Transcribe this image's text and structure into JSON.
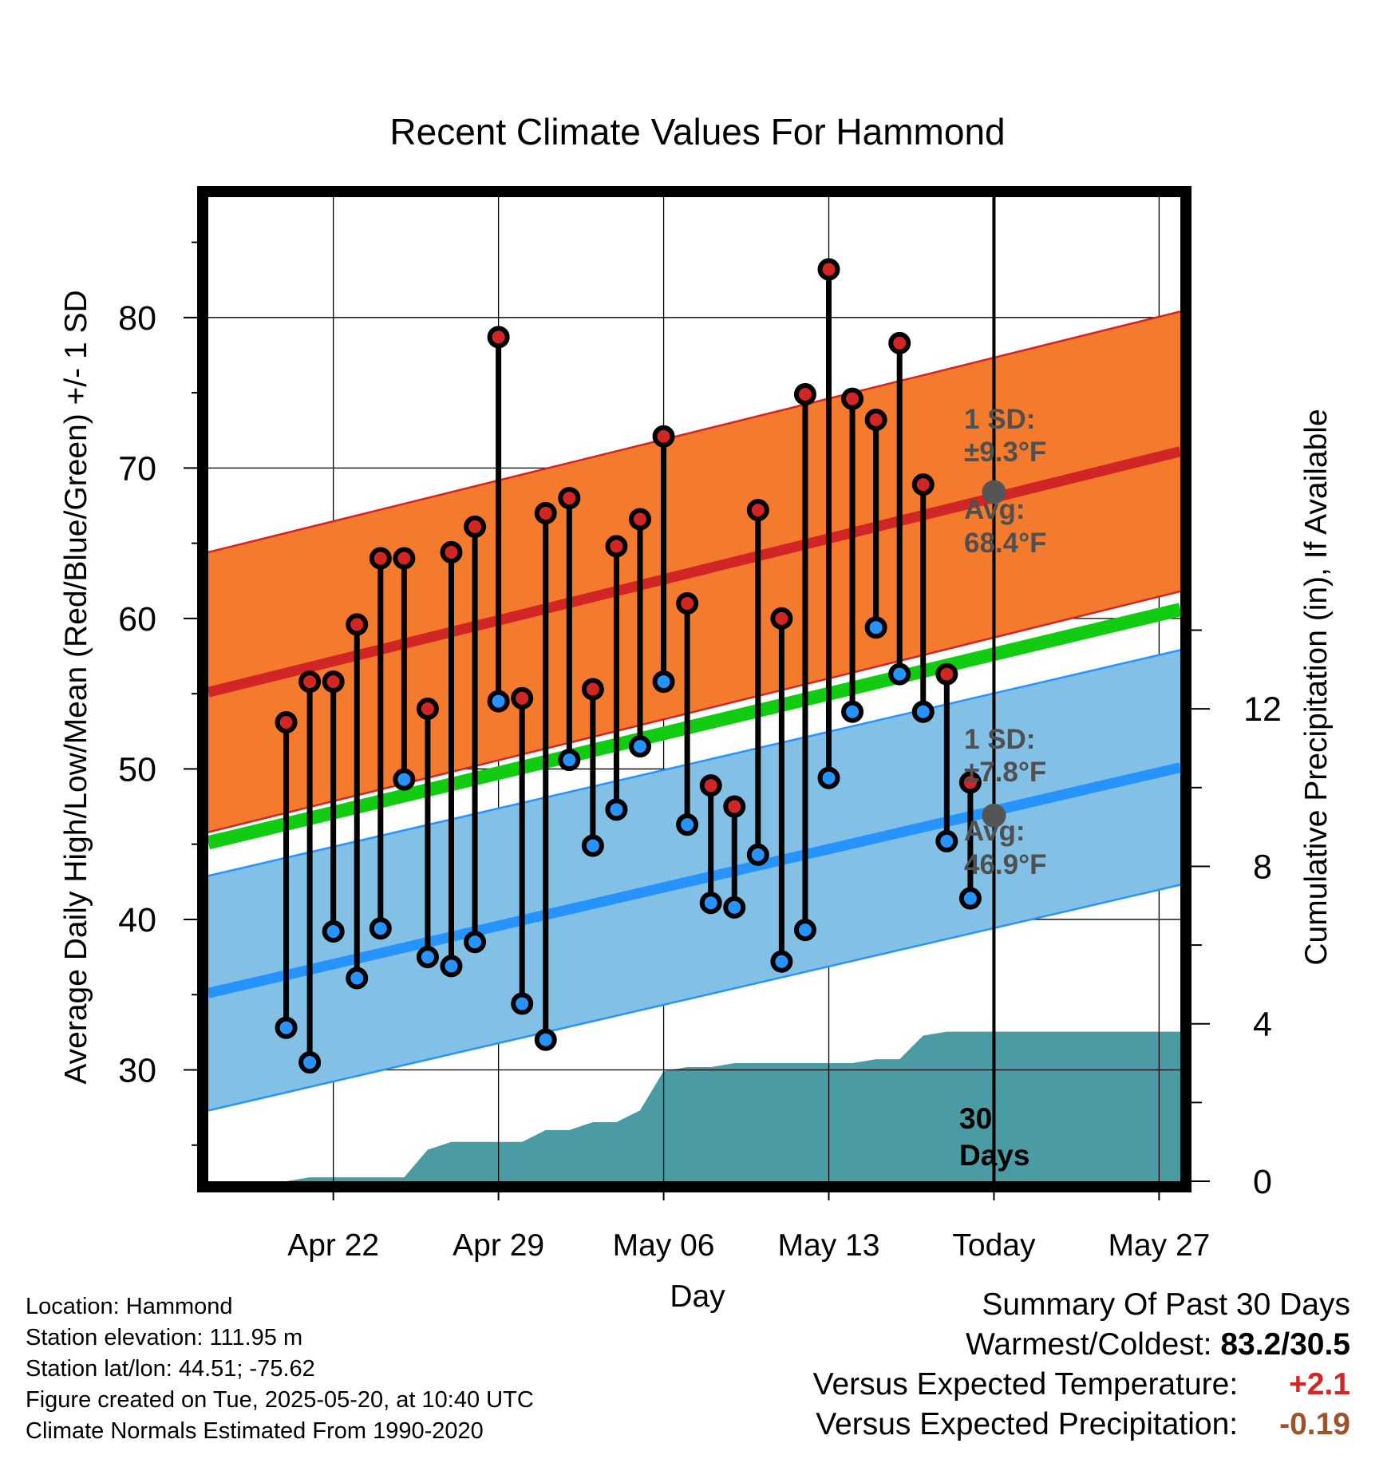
{
  "title": "Recent Climate Values For Hammond",
  "chart_data": {
    "type": "line",
    "title": "Recent Climate Values For Hammond",
    "xlabel": "Day",
    "ylabel": "Average Daily High/Low/Mean (Red/Blue/Green) +/- 1 SD",
    "y2label": "Cumulative Precipitation (in), If Available",
    "x_ticks": [
      "Apr 22",
      "Apr 29",
      "May 06",
      "May 13",
      "Today",
      "May 27"
    ],
    "y_ticks": [
      30,
      40,
      50,
      60,
      70,
      80
    ],
    "y2_ticks": [
      0,
      4,
      8,
      12
    ],
    "ylim": [
      22.6,
      88.0
    ],
    "y2lim": [
      0,
      25
    ],
    "x_range_days": [
      -33.3,
      7.9
    ],
    "x_units": "days relative to Today (May 20)",
    "grid": true,
    "today_marker": {
      "label": "30 Days"
    },
    "normals": {
      "high": {
        "start": 55.1,
        "end": 71.1,
        "sd": 9.3,
        "today_avg": 68.4
      },
      "low": {
        "start": 35.1,
        "end": 50.1,
        "sd": 7.8,
        "today_avg": 46.9
      },
      "mean": {
        "start": 45.1,
        "end": 60.6
      }
    },
    "annotations": {
      "high_sd": [
        "1 SD:",
        "±9.3°F"
      ],
      "high_avg": [
        "Avg:",
        "68.4°F"
      ],
      "low_sd": [
        "1 SD:",
        "±7.8°F"
      ],
      "low_avg": [
        "Avg:",
        "46.9°F"
      ]
    },
    "daily": {
      "day": [
        -30,
        -29,
        -28,
        -27,
        -26,
        -25,
        -24,
        -23,
        -22,
        -21,
        -20,
        -19,
        -18,
        -17,
        -16,
        -15,
        -14,
        -13,
        -12,
        -11,
        -10,
        -9,
        -8,
        -7,
        -6,
        -5,
        -4,
        -3,
        -2,
        -1
      ],
      "high": [
        53.1,
        55.8,
        55.8,
        59.6,
        64.0,
        64.0,
        54.0,
        64.4,
        66.1,
        78.7,
        54.7,
        67.0,
        68.0,
        55.3,
        64.8,
        66.6,
        72.1,
        61.0,
        48.9,
        47.5,
        67.2,
        60.0,
        74.9,
        83.2,
        74.6,
        73.2,
        78.3,
        68.9,
        56.3,
        49.1
      ],
      "low": [
        32.8,
        30.5,
        39.2,
        36.1,
        39.4,
        49.3,
        37.5,
        36.9,
        38.5,
        54.5,
        34.4,
        32.0,
        50.6,
        44.9,
        47.3,
        51.5,
        55.8,
        46.3,
        41.1,
        40.8,
        44.3,
        37.2,
        39.3,
        49.4,
        53.8,
        59.4,
        56.3,
        53.8,
        45.2,
        41.4
      ]
    },
    "precip": {
      "x": [
        -31.0,
        -30.0,
        -29.0,
        -28.0,
        -27.0,
        -26.0,
        -25.0,
        -24.0,
        -23.0,
        -22.0,
        -21.0,
        -20.0,
        -19.0,
        -18.0,
        -17.0,
        -16.0,
        -15.0,
        -14.0,
        -13.0,
        -12.0,
        -11.0,
        -10.0,
        -9.0,
        -8.0,
        -7.0,
        -6.0,
        -5.0,
        -4.0,
        -3.0,
        -2.0,
        -1.0,
        0.0,
        7.9
      ],
      "y": [
        0,
        0,
        0.1,
        0.1,
        0.1,
        0.1,
        0.1,
        0.8,
        1.0,
        1.0,
        1.0,
        1.0,
        1.3,
        1.3,
        1.5,
        1.5,
        1.8,
        2.8,
        2.9,
        2.9,
        3.0,
        3.0,
        3.0,
        3.0,
        3.0,
        3.0,
        3.1,
        3.1,
        3.7,
        3.8,
        3.8,
        3.8,
        3.8
      ]
    }
  },
  "colors": {
    "high_band": "#f47a2e",
    "high_line": "#d22525",
    "low_band": "#82c0e6",
    "low_line": "#2693ff",
    "mean_line": "#11cc11",
    "precip": "#4a9ba4",
    "high_dot": "#d22525",
    "low_dot": "#2693ff",
    "avg_dot": "#555555",
    "annot_text": "#505050"
  },
  "footer": {
    "location": "Location: Hammond",
    "elevation": "Station elevation: 111.95 m",
    "latlon": "Station lat/lon: 44.51; -75.62",
    "created": "Figure created on Tue, 2025-05-20, at 10:40 UTC",
    "normals": "Climate Normals Estimated From 1990-2020"
  },
  "summary": {
    "heading": "Summary Of Past 30 Days",
    "warm_cold_label": "Warmest/Coldest:",
    "warm_cold_value": "83.2/30.5",
    "temp_label": "Versus Expected Temperature:",
    "temp_value": "+2.1",
    "temp_color": "#d22525",
    "precip_label": "Versus Expected Precipitation:",
    "precip_value": "-0.19",
    "precip_color": "#a0522d"
  }
}
